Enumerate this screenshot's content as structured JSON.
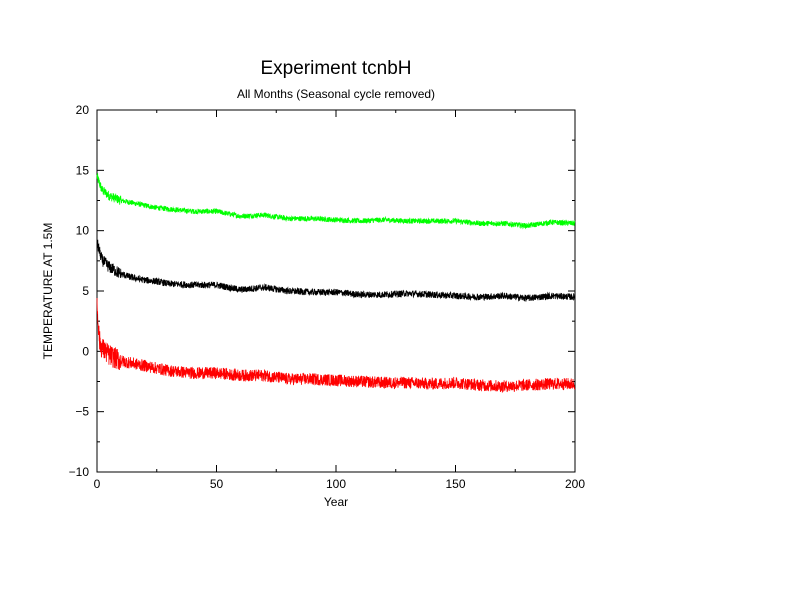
{
  "chart_data": {
    "type": "line",
    "title": "Experiment tcnbH",
    "subtitle": "All Months (Seasonal cycle removed)",
    "xlabel": "Year",
    "ylabel": "TEMPERATURE AT 1.5M",
    "xlim": [
      0,
      200
    ],
    "ylim": [
      -10,
      20
    ],
    "x_ticks": [
      0,
      50,
      100,
      150,
      200
    ],
    "y_ticks": [
      -10,
      -5,
      0,
      5,
      10,
      15,
      20
    ],
    "x_tick_labels": [
      "0",
      "50",
      "100",
      "150",
      "200"
    ],
    "y_tick_labels": [
      "−10",
      "−5",
      "0",
      "5",
      "10",
      "15",
      "20"
    ],
    "grid": false,
    "legend": "none",
    "series": [
      {
        "color": "#00ff00",
        "x": [
          0,
          2,
          5,
          10,
          15,
          20,
          25,
          30,
          40,
          50,
          60,
          70,
          80,
          90,
          100,
          110,
          120,
          130,
          140,
          150,
          160,
          170,
          180,
          190,
          200
        ],
        "values": [
          14.5,
          13.4,
          12.9,
          12.5,
          12.3,
          12.1,
          11.9,
          11.8,
          11.6,
          11.6,
          11.2,
          11.3,
          11.0,
          11.0,
          10.9,
          10.8,
          10.9,
          10.8,
          10.8,
          10.8,
          10.6,
          10.6,
          10.4,
          10.7,
          10.6
        ]
      },
      {
        "color": "#000000",
        "x": [
          0,
          2,
          5,
          10,
          15,
          20,
          25,
          30,
          40,
          50,
          60,
          70,
          80,
          90,
          100,
          110,
          120,
          130,
          140,
          150,
          160,
          170,
          180,
          190,
          200
        ],
        "values": [
          9.0,
          7.6,
          7.0,
          6.4,
          6.1,
          5.9,
          5.8,
          5.6,
          5.5,
          5.5,
          5.1,
          5.3,
          5.0,
          4.9,
          4.9,
          4.7,
          4.7,
          4.8,
          4.7,
          4.6,
          4.5,
          4.6,
          4.4,
          4.6,
          4.5
        ]
      },
      {
        "color": "#ff0000",
        "x": [
          0,
          1,
          2,
          5,
          10,
          15,
          20,
          25,
          30,
          40,
          50,
          60,
          70,
          80,
          90,
          100,
          110,
          120,
          130,
          140,
          150,
          160,
          170,
          180,
          190,
          200
        ],
        "values": [
          4.0,
          0.9,
          0.3,
          -0.3,
          -0.8,
          -1.0,
          -1.2,
          -1.4,
          -1.6,
          -1.8,
          -1.8,
          -2.0,
          -2.0,
          -2.3,
          -2.3,
          -2.4,
          -2.5,
          -2.6,
          -2.6,
          -2.7,
          -2.6,
          -2.8,
          -2.9,
          -2.8,
          -2.7,
          -2.7
        ]
      }
    ]
  }
}
